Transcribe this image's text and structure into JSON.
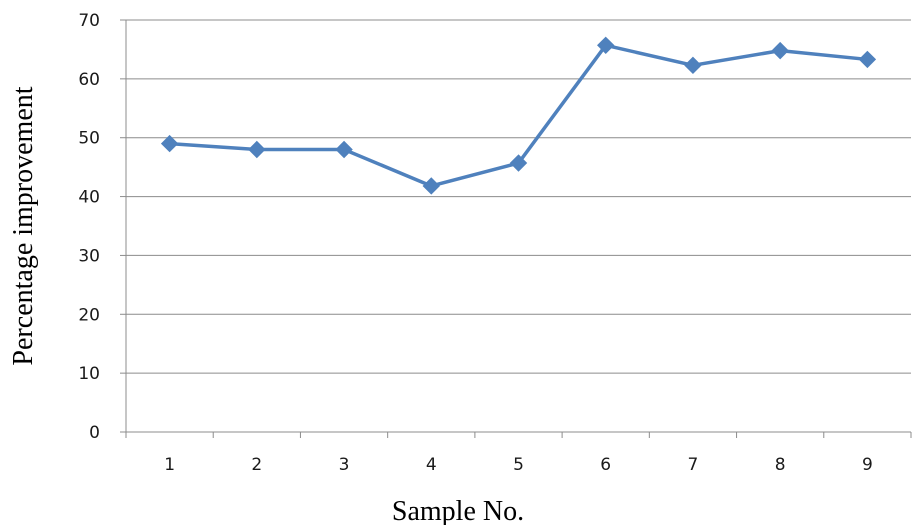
{
  "chart_data": {
    "type": "line",
    "xlabel": "Sample No.",
    "ylabel": "Percentage improvement",
    "categories": [
      "1",
      "2",
      "3",
      "4",
      "5",
      "6",
      "7",
      "8",
      "9"
    ],
    "series": [
      {
        "values": [
          49,
          48,
          48,
          41.8,
          45.7,
          65.7,
          62.3,
          64.8,
          63.3
        ]
      }
    ],
    "ylim": [
      0,
      70
    ],
    "yticks": [
      "0",
      "10",
      "20",
      "30",
      "40",
      "50",
      "60",
      "70"
    ],
    "grid": "horizontal",
    "line_color": "#4f81bd",
    "marker": "diamond"
  }
}
